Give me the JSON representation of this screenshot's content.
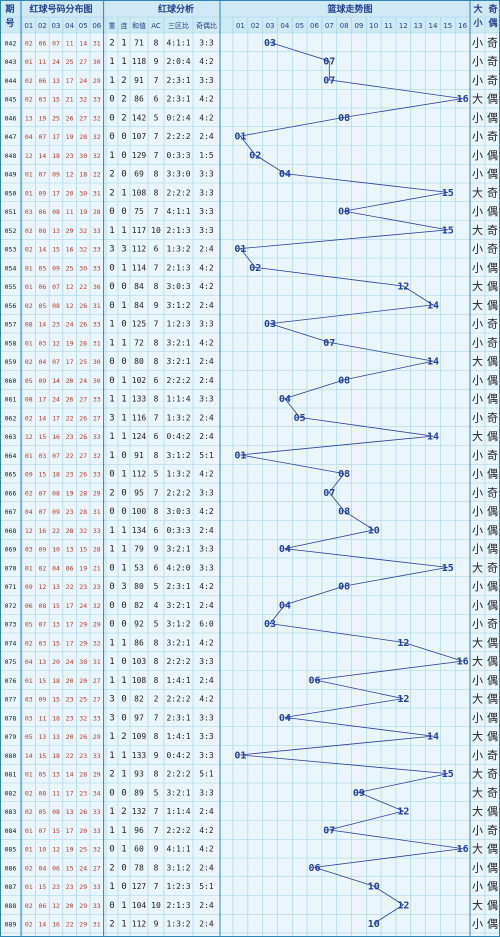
{
  "header": {
    "issue_top": "期",
    "issue_bottom": "号",
    "red_dist_title": "红球号码分布图",
    "red_analysis_title": "红球分析",
    "blue_trend_title": "篮球走势图",
    "size_title_top": "大",
    "parity_title_top": "奇",
    "size_title_bottom": "小",
    "parity_title_bottom": "偶",
    "red_cols": [
      "01",
      "02",
      "03",
      "04",
      "05",
      "06"
    ],
    "analysis_cols": [
      "重",
      "连",
      "和值",
      "AC",
      "三区比",
      "奇偶比"
    ],
    "blue_cols": [
      "01",
      "02",
      "03",
      "04",
      "05",
      "06",
      "07",
      "08",
      "09",
      "10",
      "11",
      "12",
      "13",
      "14",
      "15",
      "16"
    ]
  },
  "chart_data": {
    "type": "line",
    "title": "篮球走势图",
    "xlabel": "",
    "ylabel": "",
    "x_range": [
      1,
      16
    ],
    "rows": [
      {
        "issue": "042",
        "red": [
          "02",
          "06",
          "07",
          "11",
          "14",
          "31"
        ],
        "repeat": "2",
        "consec": "1",
        "sum": "71",
        "ac": "8",
        "zone": "4:1:1",
        "oe": "3:3",
        "blue": 3,
        "size": "小",
        "parity": "奇"
      },
      {
        "issue": "043",
        "red": [
          "01",
          "11",
          "24",
          "25",
          "27",
          "30"
        ],
        "repeat": "1",
        "consec": "1",
        "sum": "118",
        "ac": "9",
        "zone": "2:0:4",
        "oe": "4:2",
        "blue": 7,
        "size": "小",
        "parity": "奇"
      },
      {
        "issue": "044",
        "red": [
          "02",
          "06",
          "13",
          "17",
          "24",
          "29"
        ],
        "repeat": "1",
        "consec": "2",
        "sum": "91",
        "ac": "7",
        "zone": "2:3:1",
        "oe": "3:3",
        "blue": 7,
        "size": "小",
        "parity": "奇"
      },
      {
        "issue": "045",
        "red": [
          "02",
          "03",
          "15",
          "21",
          "32",
          "33"
        ],
        "repeat": "0",
        "consec": "2",
        "sum": "86",
        "ac": "6",
        "zone": "2:3:1",
        "oe": "4:2",
        "blue": 16,
        "size": "大",
        "parity": "偶"
      },
      {
        "issue": "046",
        "red": [
          "13",
          "19",
          "25",
          "26",
          "27",
          "32"
        ],
        "repeat": "0",
        "consec": "2",
        "sum": "142",
        "ac": "5",
        "zone": "0:2:4",
        "oe": "4:2",
        "blue": 8,
        "size": "小",
        "parity": "偶"
      },
      {
        "issue": "047",
        "red": [
          "04",
          "07",
          "17",
          "19",
          "28",
          "32"
        ],
        "repeat": "0",
        "consec": "0",
        "sum": "107",
        "ac": "7",
        "zone": "2:2:2",
        "oe": "2:4",
        "blue": 1,
        "size": "小",
        "parity": "奇"
      },
      {
        "issue": "048",
        "red": [
          "12",
          "14",
          "18",
          "23",
          "30",
          "32"
        ],
        "repeat": "1",
        "consec": "0",
        "sum": "129",
        "ac": "7",
        "zone": "0:3:3",
        "oe": "1:5",
        "blue": 2,
        "size": "小",
        "parity": "偶"
      },
      {
        "issue": "049",
        "red": [
          "01",
          "07",
          "09",
          "12",
          "18",
          "22"
        ],
        "repeat": "2",
        "consec": "0",
        "sum": "69",
        "ac": "8",
        "zone": "3:3:0",
        "oe": "3:3",
        "blue": 4,
        "size": "小",
        "parity": "偶"
      },
      {
        "issue": "050",
        "red": [
          "01",
          "09",
          "17",
          "20",
          "30",
          "31"
        ],
        "repeat": "2",
        "consec": "1",
        "sum": "108",
        "ac": "8",
        "zone": "2:2:2",
        "oe": "3:3",
        "blue": 15,
        "size": "大",
        "parity": "奇"
      },
      {
        "issue": "051",
        "red": [
          "03",
          "06",
          "08",
          "11",
          "19",
          "28"
        ],
        "repeat": "0",
        "consec": "0",
        "sum": "75",
        "ac": "7",
        "zone": "4:1:1",
        "oe": "3:3",
        "blue": 8,
        "size": "小",
        "parity": "偶"
      },
      {
        "issue": "052",
        "red": [
          "02",
          "08",
          "13",
          "29",
          "32",
          "33"
        ],
        "repeat": "1",
        "consec": "1",
        "sum": "117",
        "ac": "10",
        "zone": "2:1:3",
        "oe": "3:3",
        "blue": 15,
        "size": "大",
        "parity": "奇"
      },
      {
        "issue": "053",
        "red": [
          "02",
          "14",
          "15",
          "16",
          "32",
          "33"
        ],
        "repeat": "3",
        "consec": "3",
        "sum": "112",
        "ac": "6",
        "zone": "1:3:2",
        "oe": "2:4",
        "blue": 1,
        "size": "小",
        "parity": "奇"
      },
      {
        "issue": "054",
        "red": [
          "01",
          "05",
          "09",
          "25",
          "30",
          "33"
        ],
        "repeat": "0",
        "consec": "1",
        "sum": "114",
        "ac": "7",
        "zone": "2:1:3",
        "oe": "4:2",
        "blue": 2,
        "size": "小",
        "parity": "偶"
      },
      {
        "issue": "055",
        "red": [
          "01",
          "06",
          "07",
          "12",
          "22",
          "36"
        ],
        "repeat": "0",
        "consec": "0",
        "sum": "84",
        "ac": "8",
        "zone": "3:0:3",
        "oe": "4:2",
        "blue": 12,
        "size": "大",
        "parity": "偶"
      },
      {
        "issue": "056",
        "red": [
          "02",
          "05",
          "08",
          "12",
          "26",
          "31"
        ],
        "repeat": "0",
        "consec": "1",
        "sum": "84",
        "ac": "9",
        "zone": "3:1:2",
        "oe": "2:4",
        "blue": 14,
        "size": "大",
        "parity": "偶"
      },
      {
        "issue": "057",
        "red": [
          "08",
          "14",
          "23",
          "24",
          "26",
          "33"
        ],
        "repeat": "1",
        "consec": "0",
        "sum": "125",
        "ac": "7",
        "zone": "1:2:3",
        "oe": "3:3",
        "blue": 3,
        "size": "小",
        "parity": "奇"
      },
      {
        "issue": "058",
        "red": [
          "01",
          "03",
          "12",
          "19",
          "26",
          "31"
        ],
        "repeat": "1",
        "consec": "1",
        "sum": "72",
        "ac": "8",
        "zone": "3:2:1",
        "oe": "4:2",
        "blue": 7,
        "size": "小",
        "parity": "奇"
      },
      {
        "issue": "059",
        "red": [
          "02",
          "04",
          "07",
          "17",
          "25",
          "30"
        ],
        "repeat": "0",
        "consec": "0",
        "sum": "80",
        "ac": "8",
        "zone": "3:2:1",
        "oe": "2:4",
        "blue": 14,
        "size": "大",
        "parity": "偶"
      },
      {
        "issue": "060",
        "red": [
          "05",
          "09",
          "14",
          "20",
          "24",
          "30"
        ],
        "repeat": "0",
        "consec": "1",
        "sum": "102",
        "ac": "6",
        "zone": "2:2:2",
        "oe": "2:4",
        "blue": 8,
        "size": "小",
        "parity": "偶"
      },
      {
        "issue": "061",
        "red": [
          "08",
          "17",
          "24",
          "26",
          "27",
          "33"
        ],
        "repeat": "1",
        "consec": "1",
        "sum": "133",
        "ac": "8",
        "zone": "1:1:4",
        "oe": "3:3",
        "blue": 4,
        "size": "小",
        "parity": "偶"
      },
      {
        "issue": "062",
        "red": [
          "02",
          "14",
          "17",
          "22",
          "26",
          "27"
        ],
        "repeat": "3",
        "consec": "1",
        "sum": "116",
        "ac": "7",
        "zone": "1:3:2",
        "oe": "2:4",
        "blue": 5,
        "size": "小",
        "parity": "奇"
      },
      {
        "issue": "063",
        "red": [
          "12",
          "15",
          "16",
          "23",
          "26",
          "33"
        ],
        "repeat": "1",
        "consec": "1",
        "sum": "124",
        "ac": "6",
        "zone": "0:4:2",
        "oe": "2:4",
        "blue": 14,
        "size": "大",
        "parity": "偶"
      },
      {
        "issue": "064",
        "red": [
          "01",
          "03",
          "07",
          "22",
          "27",
          "32"
        ],
        "repeat": "1",
        "consec": "0",
        "sum": "91",
        "ac": "8",
        "zone": "3:1:2",
        "oe": "5:1",
        "blue": 1,
        "size": "小",
        "parity": "奇"
      },
      {
        "issue": "065",
        "red": [
          "09",
          "15",
          "18",
          "23",
          "26",
          "33"
        ],
        "repeat": "0",
        "consec": "1",
        "sum": "112",
        "ac": "5",
        "zone": "1:3:2",
        "oe": "4:2",
        "blue": 8,
        "size": "小",
        "parity": "偶"
      },
      {
        "issue": "066",
        "red": [
          "02",
          "07",
          "08",
          "19",
          "28",
          "29"
        ],
        "repeat": "2",
        "consec": "0",
        "sum": "95",
        "ac": "7",
        "zone": "2:2:2",
        "oe": "3:3",
        "blue": 7,
        "size": "小",
        "parity": "奇"
      },
      {
        "issue": "067",
        "red": [
          "04",
          "07",
          "09",
          "23",
          "28",
          "31"
        ],
        "repeat": "0",
        "consec": "0",
        "sum": "100",
        "ac": "8",
        "zone": "3:0:3",
        "oe": "4:2",
        "blue": 8,
        "size": "小",
        "parity": "偶"
      },
      {
        "issue": "068",
        "red": [
          "12",
          "16",
          "22",
          "28",
          "32",
          "33"
        ],
        "repeat": "1",
        "consec": "1",
        "sum": "134",
        "ac": "6",
        "zone": "0:3:3",
        "oe": "2:4",
        "blue": 10,
        "size": "小",
        "parity": "偶"
      },
      {
        "issue": "069",
        "red": [
          "03",
          "09",
          "10",
          "13",
          "15",
          "28"
        ],
        "repeat": "1",
        "consec": "1",
        "sum": "79",
        "ac": "9",
        "zone": "3:2:1",
        "oe": "3:3",
        "blue": 4,
        "size": "小",
        "parity": "偶"
      },
      {
        "issue": "070",
        "red": [
          "01",
          "02",
          "04",
          "06",
          "19",
          "21"
        ],
        "repeat": "0",
        "consec": "1",
        "sum": "53",
        "ac": "6",
        "zone": "4:2:0",
        "oe": "3:3",
        "blue": 15,
        "size": "大",
        "parity": "奇"
      },
      {
        "issue": "071",
        "red": [
          "09",
          "12",
          "13",
          "22",
          "23",
          "23"
        ],
        "repeat": "0",
        "consec": "3",
        "sum": "80",
        "ac": "5",
        "zone": "2:3:1",
        "oe": "4:2",
        "blue": 8,
        "size": "小",
        "parity": "偶"
      },
      {
        "issue": "072",
        "red": [
          "06",
          "08",
          "15",
          "17",
          "24",
          "32"
        ],
        "repeat": "0",
        "consec": "0",
        "sum": "82",
        "ac": "4",
        "zone": "3:2:1",
        "oe": "2:4",
        "blue": 4,
        "size": "小",
        "parity": "偶"
      },
      {
        "issue": "073",
        "red": [
          "05",
          "07",
          "13",
          "17",
          "29",
          "29"
        ],
        "repeat": "0",
        "consec": "0",
        "sum": "92",
        "ac": "5",
        "zone": "3:1:2",
        "oe": "6:0",
        "blue": 3,
        "size": "小",
        "parity": "奇"
      },
      {
        "issue": "074",
        "red": [
          "02",
          "03",
          "15",
          "17",
          "29",
          "32"
        ],
        "repeat": "1",
        "consec": "1",
        "sum": "86",
        "ac": "8",
        "zone": "3:2:1",
        "oe": "4:2",
        "blue": 12,
        "size": "大",
        "parity": "偶"
      },
      {
        "issue": "075",
        "red": [
          "04",
          "13",
          "20",
          "24",
          "30",
          "31"
        ],
        "repeat": "1",
        "consec": "0",
        "sum": "103",
        "ac": "8",
        "zone": "2:2:2",
        "oe": "3:3",
        "blue": 16,
        "size": "大",
        "parity": "偶"
      },
      {
        "issue": "076",
        "red": [
          "01",
          "15",
          "18",
          "20",
          "20",
          "27"
        ],
        "repeat": "1",
        "consec": "1",
        "sum": "108",
        "ac": "8",
        "zone": "1:4:1",
        "oe": "2:4",
        "blue": 6,
        "size": "小",
        "parity": "偶"
      },
      {
        "issue": "077",
        "red": [
          "03",
          "09",
          "15",
          "23",
          "25",
          "27"
        ],
        "repeat": "3",
        "consec": "0",
        "sum": "82",
        "ac": "2",
        "zone": "2:2:2",
        "oe": "4:2",
        "blue": 12,
        "size": "大",
        "parity": "偶"
      },
      {
        "issue": "078",
        "red": [
          "03",
          "11",
          "18",
          "23",
          "32",
          "33"
        ],
        "repeat": "3",
        "consec": "0",
        "sum": "97",
        "ac": "7",
        "zone": "2:3:1",
        "oe": "3:3",
        "blue": 4,
        "size": "小",
        "parity": "偶"
      },
      {
        "issue": "079",
        "red": [
          "05",
          "13",
          "13",
          "20",
          "26",
          "29"
        ],
        "repeat": "1",
        "consec": "2",
        "sum": "109",
        "ac": "8",
        "zone": "1:4:1",
        "oe": "3:3",
        "blue": 14,
        "size": "大",
        "parity": "偶"
      },
      {
        "issue": "080",
        "red": [
          "14",
          "15",
          "18",
          "22",
          "23",
          "33"
        ],
        "repeat": "1",
        "consec": "1",
        "sum": "133",
        "ac": "9",
        "zone": "0:4:2",
        "oe": "3:3",
        "blue": 1,
        "size": "小",
        "parity": "奇"
      },
      {
        "issue": "081",
        "red": [
          "01",
          "05",
          "13",
          "14",
          "28",
          "29"
        ],
        "repeat": "2",
        "consec": "1",
        "sum": "93",
        "ac": "8",
        "zone": "2:2:2",
        "oe": "5:1",
        "blue": 15,
        "size": "大",
        "parity": "奇"
      },
      {
        "issue": "082",
        "red": [
          "02",
          "08",
          "11",
          "17",
          "23",
          "34"
        ],
        "repeat": "0",
        "consec": "0",
        "sum": "89",
        "ac": "5",
        "zone": "3:2:1",
        "oe": "3:3",
        "blue": 9,
        "size": "大",
        "parity": "奇"
      },
      {
        "issue": "083",
        "red": [
          "02",
          "05",
          "08",
          "13",
          "26",
          "33"
        ],
        "repeat": "1",
        "consec": "2",
        "sum": "132",
        "ac": "7",
        "zone": "1:1:4",
        "oe": "2:4",
        "blue": 12,
        "size": "大",
        "parity": "偶"
      },
      {
        "issue": "084",
        "red": [
          "01",
          "07",
          "15",
          "17",
          "20",
          "33"
        ],
        "repeat": "1",
        "consec": "1",
        "sum": "96",
        "ac": "7",
        "zone": "2:2:2",
        "oe": "4:2",
        "blue": 7,
        "size": "小",
        "parity": "奇"
      },
      {
        "issue": "085",
        "red": [
          "01",
          "10",
          "12",
          "19",
          "25",
          "32"
        ],
        "repeat": "0",
        "consec": "1",
        "sum": "60",
        "ac": "9",
        "zone": "4:1:1",
        "oe": "4:2",
        "blue": 16,
        "size": "大",
        "parity": "偶"
      },
      {
        "issue": "086",
        "red": [
          "02",
          "04",
          "06",
          "15",
          "24",
          "27"
        ],
        "repeat": "2",
        "consec": "0",
        "sum": "78",
        "ac": "8",
        "zone": "3:1:2",
        "oe": "2:4",
        "blue": 6,
        "size": "小",
        "parity": "偶"
      },
      {
        "issue": "087",
        "red": [
          "01",
          "15",
          "23",
          "23",
          "29",
          "33"
        ],
        "repeat": "1",
        "consec": "0",
        "sum": "127",
        "ac": "7",
        "zone": "1:2:3",
        "oe": "5:1",
        "blue": 10,
        "size": "小",
        "parity": "偶"
      },
      {
        "issue": "088",
        "red": [
          "02",
          "06",
          "12",
          "20",
          "29",
          "33"
        ],
        "repeat": "0",
        "consec": "1",
        "sum": "104",
        "ac": "10",
        "zone": "2:1:3",
        "oe": "2:4",
        "blue": 12,
        "size": "大",
        "parity": "偶"
      },
      {
        "issue": "089",
        "red": [
          "02",
          "14",
          "16",
          "22",
          "29",
          "31"
        ],
        "repeat": "2",
        "consec": "1",
        "sum": "112",
        "ac": "9",
        "zone": "1:3:2",
        "oe": "2:4",
        "blue": 10,
        "size": "小",
        "parity": "偶"
      }
    ]
  },
  "colors": {
    "bg": "#eaf6fb",
    "grid": "#9fd3ea",
    "header_bg": "#cfe9f5",
    "border": "#2e86b6",
    "red_num": "#c0392b",
    "blue_num": "#1f3fa8",
    "line": "#2a3f9c"
  }
}
